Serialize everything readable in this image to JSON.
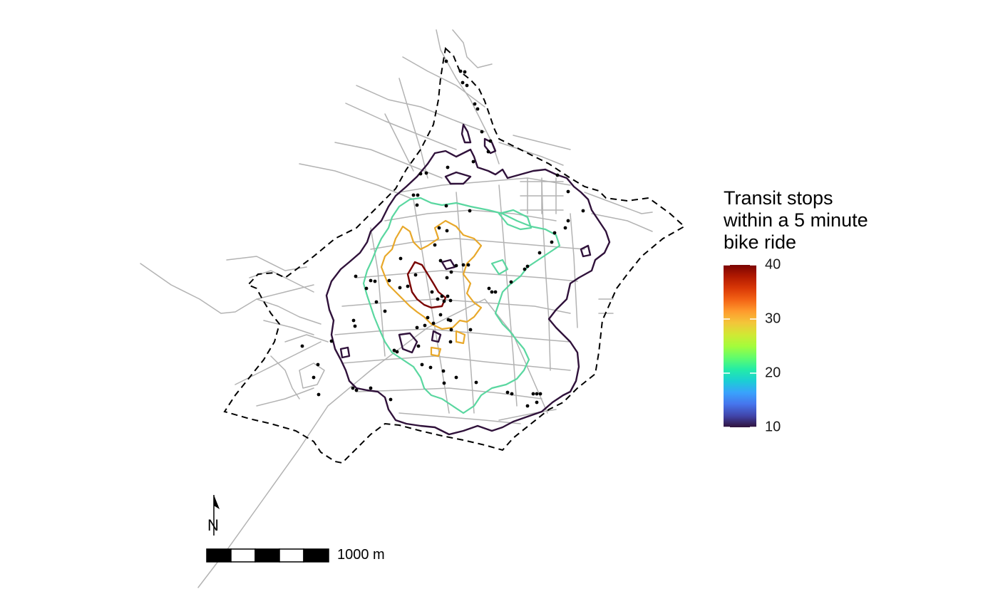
{
  "legend": {
    "title": "Transit stops\nwithin a 5 minute\nbike ride",
    "ticks": [
      "40",
      "30",
      "20",
      "10"
    ],
    "colormap": [
      "#30123b",
      "#4145ab",
      "#4675ed",
      "#39a2fc",
      "#1bcfd4",
      "#24eca6",
      "#61fc6c",
      "#a4fc3b",
      "#d1e834",
      "#f3c63a",
      "#fe9b2d",
      "#f36315",
      "#d93806",
      "#b11901",
      "#7a0403"
    ]
  },
  "scale_bar": {
    "label": "1000 m"
  },
  "north_arrow": {
    "label": "N"
  },
  "contour_levels": [
    {
      "level": 10,
      "color": "#30123b"
    },
    {
      "level": 20,
      "color": "#5ad7a0"
    },
    {
      "level": 30,
      "color": "#e8a82a"
    },
    {
      "level": 40,
      "color": "#7a0403"
    }
  ],
  "colors": {
    "streets": "#b3b3b3",
    "boundary": "#000000",
    "stops": "#000000"
  }
}
